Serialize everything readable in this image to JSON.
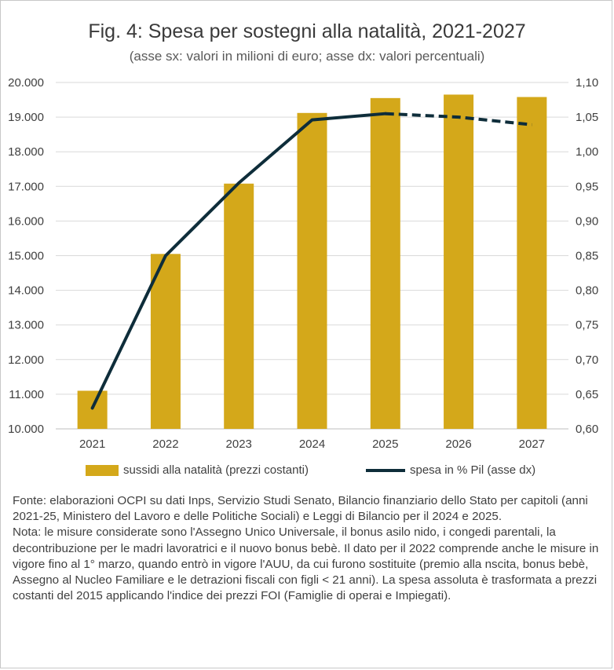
{
  "header": {
    "title": "Fig. 4: Spesa per sostegni alla natalità, 2021-2027",
    "subtitle": "(asse sx: valori in milioni di euro; asse dx: valori percentuali)"
  },
  "chart_data": {
    "type": "bar",
    "categories": [
      "2021",
      "2022",
      "2023",
      "2024",
      "2025",
      "2026",
      "2027"
    ],
    "series": [
      {
        "name": "sussidi alla natalità (prezzi costanti)",
        "type": "bar",
        "axis": "left",
        "color": "#D4A81A",
        "values": [
          11100,
          15050,
          17080,
          19120,
          19550,
          19650,
          19580
        ]
      },
      {
        "name": "spesa in % Pil (asse dx)",
        "type": "line",
        "axis": "right",
        "color": "#0E2D3A",
        "values": [
          0.63,
          0.85,
          0.955,
          1.046,
          1.055,
          1.05,
          1.039
        ],
        "dashed_from": "2025"
      }
    ],
    "y_left": {
      "lim": [
        10000,
        20000
      ],
      "ticks": [
        "10.000",
        "11.000",
        "12.000",
        "13.000",
        "14.000",
        "15.000",
        "16.000",
        "17.000",
        "18.000",
        "19.000",
        "20.000"
      ]
    },
    "y_right": {
      "lim": [
        0.6,
        1.1
      ],
      "ticks": [
        "0,60",
        "0,65",
        "0,70",
        "0,75",
        "0,80",
        "0,85",
        "0,90",
        "0,95",
        "1,00",
        "1,05",
        "1,10"
      ]
    },
    "grid": true,
    "legend_position": "bottom"
  },
  "notes": {
    "source": "Fonte: elaborazioni OCPI su dati Inps, Servizio Studi Senato, Bilancio finanziario dello Stato per capitoli (anni 2021-25, Ministero del Lavoro e delle Politiche Sociali) e Leggi di Bilancio per il 2024 e 2025.",
    "note": "Nota: le misure considerate sono l'Assegno Unico Universale, il bonus asilo nido, i congedi parentali, la decontribuzione per le madri lavoratrici e il nuovo bonus bebè. Il dato per il 2022 comprende anche le misure in vigore fino al 1°  marzo, quando entrò in vigore l'AUU, da cui furono sostituite (premio alla nscita, bonus bebè, Assegno al Nucleo Familiare e le detrazioni fiscali con figli < 21 anni). La spesa assoluta è trasformata a prezzi costanti del 2015 applicando l'indice dei prezzi FOI (Famiglie di operai e Impiegati)."
  }
}
